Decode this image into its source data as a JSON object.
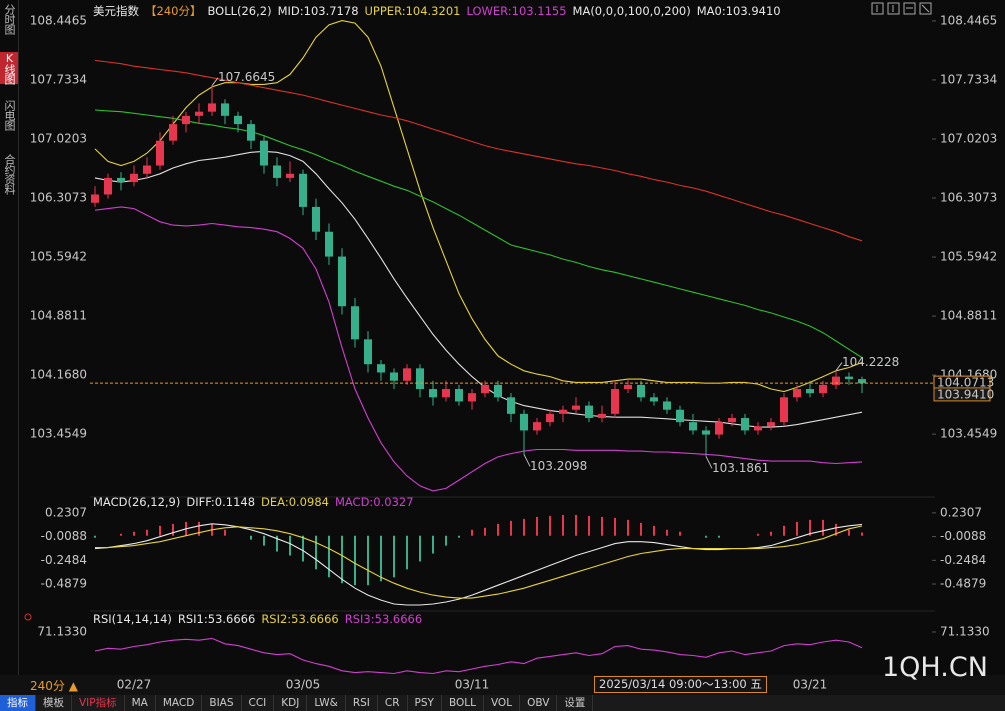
{
  "chart_data": [
    {
      "type": "candlestick",
      "header": [
        {
          "text": "美元指数",
          "color": "#e8e8e8"
        },
        {
          "text": "【240分】",
          "color": "#e89a2c"
        },
        {
          "text": "BOLL(26,2)",
          "color": "#e8e8e8"
        },
        {
          "text": "MID:103.7178",
          "color": "#e8e8e8"
        },
        {
          "text": "UPPER:104.3201",
          "color": "#e6d23a"
        },
        {
          "text": "LOWER:103.1155",
          "color": "#d040d0"
        },
        {
          "text": "MA(0,0,0,100,0,200)",
          "color": "#e8e8e8"
        },
        {
          "text": "MA0:103.9410",
          "color": "#e8e8e8"
        }
      ],
      "categories": [
        null,
        null,
        null,
        "02/27",
        null,
        null,
        null,
        null,
        null,
        null,
        null,
        null,
        null,
        null,
        null,
        null,
        "03/05",
        null,
        null,
        null,
        null,
        null,
        null,
        null,
        null,
        null,
        null,
        null,
        null,
        "03/11",
        null,
        null,
        null,
        null,
        null,
        null,
        null,
        null,
        null,
        null,
        null,
        null,
        null,
        null,
        null,
        null,
        null,
        null,
        null,
        null,
        null,
        null,
        null,
        null,
        null,
        "03/21",
        null,
        null,
        null,
        null
      ],
      "cursor_label": "2025/03/14 09:00～13:00 五",
      "open": [
        106.25,
        106.35,
        106.55,
        106.5,
        106.6,
        106.7,
        107.0,
        107.2,
        107.3,
        107.35,
        107.45,
        107.3,
        107.2,
        107.0,
        106.7,
        106.55,
        106.6,
        106.2,
        105.9,
        105.6,
        105.0,
        104.6,
        104.3,
        104.2,
        104.1,
        104.25,
        104.0,
        103.9,
        104.0,
        103.85,
        103.95,
        104.05,
        103.9,
        103.7,
        103.5,
        103.6,
        103.7,
        103.75,
        103.8,
        103.65,
        103.7,
        104.0,
        104.05,
        103.9,
        103.85,
        103.75,
        103.6,
        103.5,
        103.45,
        103.6,
        103.65,
        103.5,
        103.55,
        103.6,
        103.9,
        104.0,
        103.95,
        104.05,
        104.15,
        104.12
      ],
      "high": [
        106.45,
        106.6,
        106.62,
        106.7,
        106.8,
        107.1,
        107.3,
        107.35,
        107.45,
        107.6645,
        107.5,
        107.35,
        107.25,
        107.05,
        106.8,
        106.75,
        106.65,
        106.3,
        106.0,
        105.7,
        105.1,
        104.7,
        104.35,
        104.25,
        104.3,
        104.3,
        104.1,
        104.1,
        104.05,
        104.0,
        104.1,
        104.1,
        103.95,
        103.75,
        103.65,
        103.75,
        103.8,
        103.9,
        103.85,
        103.8,
        104.1,
        104.12,
        104.1,
        103.95,
        103.9,
        103.8,
        103.7,
        103.55,
        103.65,
        103.7,
        103.7,
        103.6,
        103.65,
        103.95,
        104.05,
        104.1,
        104.1,
        104.2228,
        104.2,
        104.15
      ],
      "low": [
        106.2,
        106.3,
        106.4,
        106.45,
        106.55,
        106.65,
        106.95,
        107.1,
        107.2,
        107.3,
        107.2,
        107.1,
        106.9,
        106.6,
        106.45,
        106.5,
        106.1,
        105.8,
        105.5,
        104.9,
        104.5,
        104.2,
        104.1,
        104.0,
        104.05,
        103.9,
        103.8,
        103.85,
        103.8,
        103.75,
        103.9,
        103.85,
        103.6,
        103.2098,
        103.45,
        103.55,
        103.6,
        103.7,
        103.6,
        103.6,
        103.65,
        103.95,
        103.85,
        103.8,
        103.7,
        103.55,
        103.45,
        103.1861,
        103.4,
        103.55,
        103.45,
        103.45,
        103.5,
        103.55,
        103.85,
        103.9,
        103.9,
        104.0,
        104.05,
        103.95
      ],
      "close": [
        106.35,
        106.55,
        106.5,
        106.6,
        106.7,
        107.0,
        107.2,
        107.3,
        107.35,
        107.45,
        107.3,
        107.2,
        107.0,
        106.7,
        106.55,
        106.6,
        106.2,
        105.9,
        105.6,
        105.0,
        104.6,
        104.3,
        104.2,
        104.1,
        104.25,
        104.0,
        103.9,
        104.0,
        103.85,
        103.95,
        104.05,
        103.9,
        103.7,
        103.5,
        103.6,
        103.7,
        103.75,
        103.8,
        103.65,
        103.7,
        104.0,
        104.05,
        103.9,
        103.85,
        103.75,
        103.6,
        103.5,
        103.45,
        103.6,
        103.65,
        103.5,
        103.55,
        103.6,
        103.9,
        104.0,
        103.95,
        104.05,
        104.15,
        104.12,
        104.07
      ],
      "up_color": "#e8364f",
      "down_color": "#35b08a",
      "lines": [
        {
          "color": "#e6d23a",
          "values": [
            106.9,
            106.75,
            106.7,
            106.75,
            106.85,
            107.0,
            107.2,
            107.4,
            107.55,
            107.65,
            107.7,
            107.7,
            107.68,
            107.68,
            107.7,
            107.8,
            108.0,
            108.25,
            108.4,
            108.45,
            108.42,
            108.25,
            107.9,
            107.4,
            106.9,
            106.4,
            105.95,
            105.55,
            105.15,
            104.85,
            104.6,
            104.4,
            104.3,
            104.22,
            104.18,
            104.15,
            104.1,
            104.08,
            104.08,
            104.08,
            104.1,
            104.12,
            104.12,
            104.1,
            104.08,
            104.08,
            104.08,
            104.07,
            104.07,
            104.08,
            104.08,
            104.06,
            104.0,
            103.97,
            104.02,
            104.08,
            104.15,
            104.22,
            104.26,
            104.32
          ]
        },
        {
          "color": "#e0e0e0",
          "values": [
            106.55,
            106.52,
            106.5,
            106.52,
            106.55,
            106.6,
            106.67,
            106.72,
            106.76,
            106.78,
            106.8,
            106.83,
            106.86,
            106.87,
            106.86,
            106.82,
            106.75,
            106.6,
            106.42,
            106.25,
            106.05,
            105.82,
            105.58,
            105.33,
            105.1,
            104.88,
            104.66,
            104.47,
            104.3,
            104.15,
            104.02,
            103.92,
            103.85,
            103.8,
            103.77,
            103.74,
            103.72,
            103.7,
            103.68,
            103.67,
            103.66,
            103.66,
            103.66,
            103.65,
            103.64,
            103.63,
            103.62,
            103.61,
            103.6,
            103.58,
            103.56,
            103.54,
            103.54,
            103.55,
            103.57,
            103.6,
            103.63,
            103.66,
            103.69,
            103.72
          ]
        },
        {
          "color": "#d040d0",
          "values": [
            106.16,
            106.18,
            106.2,
            106.18,
            106.1,
            106.02,
            105.98,
            105.97,
            105.98,
            106.0,
            105.98,
            105.96,
            105.95,
            105.93,
            105.9,
            105.82,
            105.7,
            105.45,
            105.05,
            104.5,
            104.0,
            103.65,
            103.35,
            103.12,
            102.95,
            102.83,
            102.77,
            102.8,
            102.9,
            103.0,
            103.1,
            103.18,
            103.22,
            103.25,
            103.27,
            103.27,
            103.27,
            103.26,
            103.26,
            103.26,
            103.26,
            103.25,
            103.25,
            103.24,
            103.24,
            103.23,
            103.22,
            103.21,
            103.2,
            103.18,
            103.16,
            103.14,
            103.13,
            103.13,
            103.13,
            103.13,
            103.11,
            103.1,
            103.11,
            103.12
          ]
        },
        {
          "color": "#2fbf2f",
          "values": [
            107.37,
            107.36,
            107.35,
            107.33,
            107.31,
            107.29,
            107.27,
            107.24,
            107.21,
            107.19,
            107.16,
            107.14,
            107.11,
            107.06,
            107.0,
            106.94,
            106.89,
            106.83,
            106.76,
            106.7,
            106.63,
            106.57,
            106.51,
            106.45,
            106.4,
            106.33,
            106.26,
            106.18,
            106.1,
            106.01,
            105.92,
            105.83,
            105.74,
            105.7,
            105.66,
            105.62,
            105.57,
            105.53,
            105.48,
            105.44,
            105.41,
            105.37,
            105.33,
            105.29,
            105.25,
            105.21,
            105.17,
            105.13,
            105.09,
            105.05,
            105.01,
            104.96,
            104.92,
            104.87,
            104.82,
            104.76,
            104.68,
            104.58,
            104.48,
            104.38
          ]
        },
        {
          "color": "#d8322a",
          "values": [
            107.97,
            107.95,
            107.93,
            107.9,
            107.88,
            107.86,
            107.84,
            107.82,
            107.79,
            107.76,
            107.73,
            107.7,
            107.67,
            107.64,
            107.61,
            107.58,
            107.55,
            107.51,
            107.47,
            107.43,
            107.39,
            107.35,
            107.31,
            107.28,
            107.24,
            107.19,
            107.14,
            107.09,
            107.04,
            106.99,
            106.94,
            106.9,
            106.87,
            106.84,
            106.81,
            106.78,
            106.75,
            106.72,
            106.7,
            106.67,
            106.64,
            106.6,
            106.57,
            106.53,
            106.5,
            106.46,
            106.43,
            106.39,
            106.34,
            106.29,
            106.24,
            106.19,
            106.14,
            106.1,
            106.05,
            106.0,
            105.95,
            105.9,
            105.84,
            105.79
          ]
        }
      ],
      "annotations": [
        {
          "value": 107.6645,
          "color": "#e8364f"
        },
        {
          "value": 103.2098,
          "color": "#35b08a"
        },
        {
          "value": 103.1861,
          "color": "#35b08a"
        },
        {
          "value": 104.2228,
          "color": "#e8364f"
        }
      ],
      "price_line": {
        "value": 104.0713,
        "color": "#e89a2c"
      },
      "ma0_marker": {
        "value": 103.941,
        "label": "103.9410"
      },
      "ylim": [
        102.72,
        108.53
      ],
      "yticks": [
        108.4465,
        107.7334,
        107.0203,
        106.3073,
        105.5942,
        104.8811,
        {
          "value": 104.168,
          "label": "104.1680"
        },
        103.4549
      ]
    },
    {
      "type": "macd",
      "header": [
        {
          "text": "MACD(26,12,9)",
          "color": "#e8e8e8"
        },
        {
          "text": "DIFF:0.1148",
          "color": "#e8e8e8"
        },
        {
          "text": "DEA:0.0984",
          "color": "#e6d23a"
        },
        {
          "text": "MACD:0.0327",
          "color": "#d040d0"
        }
      ],
      "series": [
        {
          "color": "#e8e8e8",
          "values": [
            -0.13,
            -0.12,
            -0.1,
            -0.08,
            -0.05,
            -0.01,
            0.03,
            0.07,
            0.1,
            0.12,
            0.11,
            0.09,
            0.06,
            0.02,
            -0.03,
            -0.08,
            -0.15,
            -0.24,
            -0.34,
            -0.44,
            -0.53,
            -0.6,
            -0.65,
            -0.69,
            -0.7,
            -0.7,
            -0.69,
            -0.67,
            -0.64,
            -0.6,
            -0.55,
            -0.5,
            -0.45,
            -0.4,
            -0.35,
            -0.3,
            -0.25,
            -0.2,
            -0.16,
            -0.12,
            -0.08,
            -0.06,
            -0.06,
            -0.07,
            -0.09,
            -0.11,
            -0.13,
            -0.14,
            -0.14,
            -0.13,
            -0.13,
            -0.12,
            -0.1,
            -0.06,
            -0.02,
            0.02,
            0.05,
            0.08,
            0.1,
            0.1148
          ]
        },
        {
          "color": "#e6d23a",
          "values": [
            -0.12,
            -0.12,
            -0.11,
            -0.1,
            -0.08,
            -0.06,
            -0.03,
            0.0,
            0.03,
            0.06,
            0.08,
            0.09,
            0.08,
            0.07,
            0.05,
            0.02,
            -0.02,
            -0.07,
            -0.13,
            -0.2,
            -0.28,
            -0.35,
            -0.42,
            -0.48,
            -0.53,
            -0.57,
            -0.6,
            -0.62,
            -0.63,
            -0.63,
            -0.61,
            -0.59,
            -0.56,
            -0.53,
            -0.49,
            -0.45,
            -0.41,
            -0.37,
            -0.33,
            -0.29,
            -0.25,
            -0.21,
            -0.18,
            -0.16,
            -0.14,
            -0.13,
            -0.13,
            -0.13,
            -0.13,
            -0.13,
            -0.13,
            -0.13,
            -0.12,
            -0.11,
            -0.09,
            -0.06,
            -0.03,
            0.02,
            0.07,
            0.0984
          ]
        }
      ],
      "histogram": {
        "up_color": "#e8364f",
        "down_color": "#35b08a",
        "values": [
          -0.02,
          0,
          0.02,
          0.04,
          0.06,
          0.1,
          0.12,
          0.14,
          0.14,
          0.12,
          0.06,
          0,
          -0.04,
          -0.1,
          -0.16,
          -0.2,
          -0.26,
          -0.34,
          -0.42,
          -0.48,
          -0.5,
          -0.5,
          -0.46,
          -0.42,
          -0.34,
          -0.26,
          -0.18,
          -0.1,
          -0.02,
          0.06,
          0.08,
          0.12,
          0.15,
          0.17,
          0.19,
          0.2,
          0.21,
          0.21,
          0.2,
          0.19,
          0.18,
          0.16,
          0.13,
          0.1,
          0.06,
          0.04,
          0,
          -0.02,
          -0.02,
          0,
          0,
          0.02,
          0.04,
          0.1,
          0.14,
          0.16,
          0.16,
          0.12,
          0.06,
          0.0327
        ]
      },
      "ylim": [
        -0.71,
        0.28
      ],
      "yticks": [
        0.2307,
        -0.0088,
        -0.2484,
        -0.4879
      ]
    },
    {
      "type": "line",
      "header": [
        {
          "text": "RSI(14,14,14)",
          "color": "#e8e8e8"
        },
        {
          "text": "RSI1:53.6666",
          "color": "#e8e8e8"
        },
        {
          "text": "RSI2:53.6666",
          "color": "#e6d23a"
        },
        {
          "text": "RSI3:53.6666",
          "color": "#d040d0"
        }
      ],
      "series": [
        {
          "color": "#d040d0",
          "values": [
            50,
            53,
            52,
            55,
            57,
            60,
            62,
            63,
            62,
            64,
            58,
            56,
            52,
            48,
            46,
            47,
            40,
            36,
            33,
            28,
            26,
            27,
            26,
            25,
            28,
            26,
            25,
            28,
            27,
            30,
            33,
            35,
            38,
            36,
            42,
            44,
            46,
            48,
            45,
            47,
            55,
            56,
            52,
            51,
            49,
            46,
            45,
            43,
            48,
            50,
            46,
            48,
            50,
            56,
            58,
            57,
            60,
            62,
            60,
            53.6666
          ]
        }
      ],
      "ylim": [
        20,
        80
      ],
      "yticks": [
        {
          "value": 71.133,
          "label": "71.1330"
        }
      ]
    }
  ],
  "sidebar": [
    "分时图",
    "K线图",
    "闪电图",
    "合约资料"
  ],
  "timeframe": "240分 ▲",
  "toolbar": [
    "指标",
    "模板",
    "VIP指标",
    "MA",
    "MACD",
    "BIAS",
    "CCI",
    "KDJ",
    "LW&",
    "RSI",
    "CR",
    "PSY",
    "BOLL",
    "VOL",
    "OBV",
    "设置"
  ],
  "watermark": "1QH.CN"
}
